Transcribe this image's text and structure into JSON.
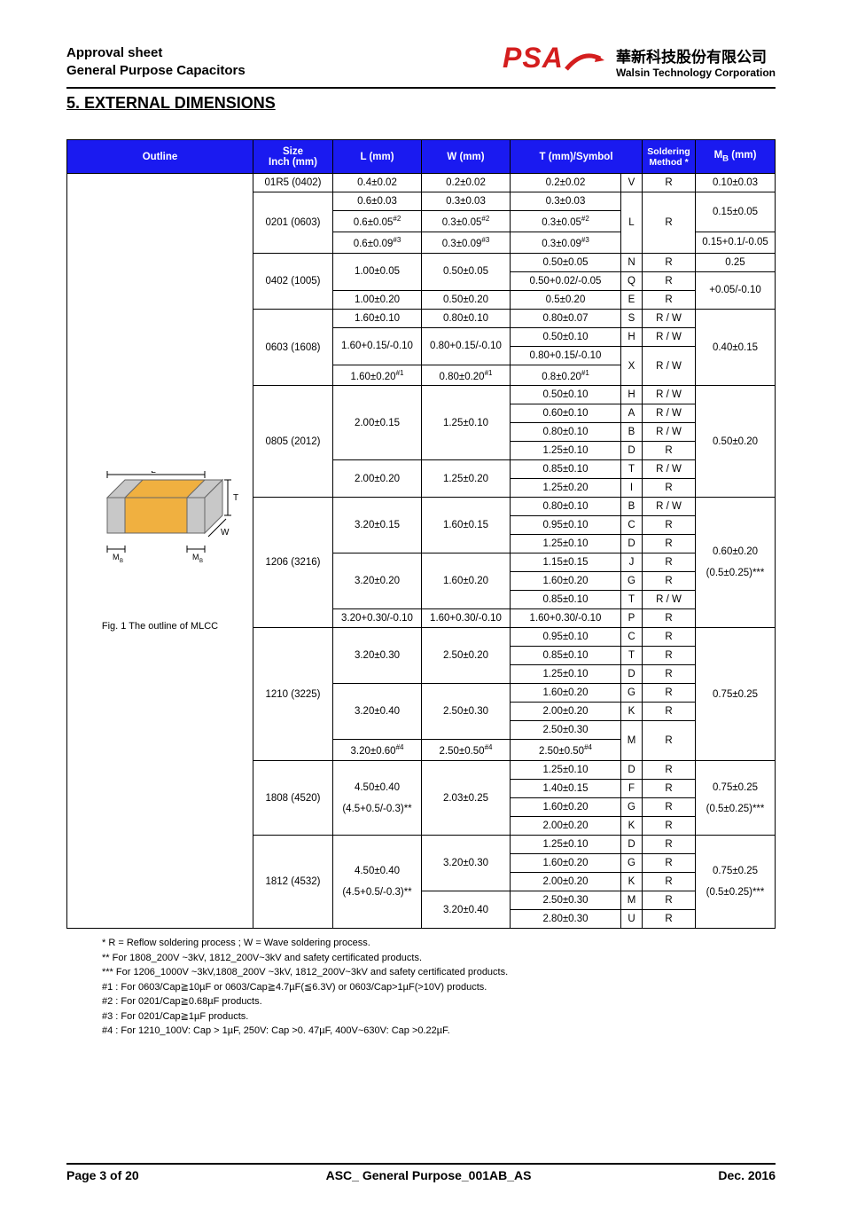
{
  "header": {
    "line1": "Approval sheet",
    "line2": "General Purpose Capacitors",
    "logo_text": "PSA",
    "company_cn": "華新科技股份有限公司",
    "company_en": "Walsin Technology Corporation"
  },
  "section_title": "5. EXTERNAL DIMENSIONS",
  "table": {
    "headers": {
      "outline": "Outline",
      "size": "Size\nInch (mm)",
      "l": "L (mm)",
      "w": "W (mm)",
      "t": "T (mm)/Symbol",
      "sold": "Soldering\nMethod *",
      "mb": "M_B (mm)"
    },
    "fig_labels": {
      "L": "L",
      "T": "T",
      "W": "W",
      "MB1": "M_B",
      "MB2": "M_B"
    },
    "fig_caption": "Fig. 1 The outline of MLCC",
    "colors": {
      "header_bg": "#1a1af0",
      "header_fg": "#ffffff",
      "mlcc_body": "#f0b040",
      "mlcc_term": "#c8c8c8",
      "mlcc_edge": "#666666"
    }
  },
  "rows": [
    {
      "size": "01R5 (0402)",
      "sub": [
        {
          "l": "0.4±0.02",
          "w": "0.2±0.02",
          "t": "0.2±0.02",
          "sym": "V",
          "sold": "R",
          "mb": "0.10±0.03"
        }
      ]
    },
    {
      "size": "0201 (0603)",
      "sub": [
        {
          "l": "0.6±0.03",
          "w": "0.3±0.03",
          "t": "0.3±0.03",
          "sym_rs": 3,
          "sym": "L",
          "sold_rs": 3,
          "sold": "R",
          "mb_rs": 2,
          "mb": "0.15±0.05"
        },
        {
          "l": "0.6±0.05#2",
          "w": "0.3±0.05#2",
          "t": "0.3±0.05#2"
        },
        {
          "l": "0.6±0.09#3",
          "w": "0.3±0.09#3",
          "t": "0.3±0.09#3",
          "mb": "0.15+0.1/-0.05"
        }
      ]
    },
    {
      "size": "0402 (1005)",
      "sub": [
        {
          "l": "1.00±0.05",
          "l_rs": 2,
          "w": "0.50±0.05",
          "w_rs": 2,
          "t": "0.50±0.05",
          "sym": "N",
          "sold": "R",
          "mb": "0.25"
        },
        {
          "t": "0.50+0.02/-0.05",
          "sym": "Q",
          "sold": "R",
          "mb_rs": 2,
          "mb": "+0.05/-0.10"
        },
        {
          "l": "1.00±0.20",
          "w": "0.50±0.20",
          "t": "0.5±0.20",
          "sym": "E",
          "sold": "R"
        }
      ]
    },
    {
      "size": "0603 (1608)",
      "sub": [
        {
          "l": "1.60±0.10",
          "w": "0.80±0.10",
          "t": "0.80±0.07",
          "sym": "S",
          "sold": "R / W",
          "mb_rs": 4,
          "mb": "0.40±0.15"
        },
        {
          "l": "1.60+0.15/-0.10",
          "l_rs": 2,
          "w": "0.80+0.15/-0.10",
          "w_rs": 2,
          "t": "0.50±0.10",
          "sym": "H",
          "sold": "R / W"
        },
        {
          "t": "0.80+0.15/-0.10",
          "sym_rs": 2,
          "sym": "X",
          "sold_rs": 2,
          "sold": "R / W"
        },
        {
          "l": "1.60±0.20#1",
          "w": "0.80±0.20#1",
          "t": "0.8±0.20#1"
        }
      ]
    },
    {
      "size": "0805 (2012)",
      "sub": [
        {
          "l": "2.00±0.15",
          "l_rs": 4,
          "w": "1.25±0.10",
          "w_rs": 4,
          "t": "0.50±0.10",
          "sym": "H",
          "sold": "R / W",
          "mb_rs": 6,
          "mb": "0.50±0.20"
        },
        {
          "t": "0.60±0.10",
          "sym": "A",
          "sold": "R / W"
        },
        {
          "t": "0.80±0.10",
          "sym": "B",
          "sold": "R / W"
        },
        {
          "t": "1.25±0.10",
          "sym": "D",
          "sold": "R"
        },
        {
          "l": "2.00±0.20",
          "l_rs": 2,
          "w": "1.25±0.20",
          "w_rs": 2,
          "t": "0.85±0.10",
          "sym": "T",
          "sold": "R / W"
        },
        {
          "t": "1.25±0.20",
          "sym": "I",
          "sold": "R"
        }
      ]
    },
    {
      "size": "1206 (3216)",
      "sub": [
        {
          "l": "3.20±0.15",
          "l_rs": 3,
          "w": "1.60±0.15",
          "w_rs": 3,
          "t": "0.80±0.10",
          "sym": "B",
          "sold": "R / W",
          "mb_rs": 7,
          "mb": "0.60±0.20\n\n(0.5±0.25)***"
        },
        {
          "t": "0.95±0.10",
          "sym": "C",
          "sold": "R"
        },
        {
          "t": "1.25±0.10",
          "sym": "D",
          "sold": "R"
        },
        {
          "l": "3.20±0.20",
          "l_rs": 3,
          "w": "1.60±0.20",
          "w_rs": 3,
          "t": "1.15±0.15",
          "sym": "J",
          "sold": "R"
        },
        {
          "t": "1.60±0.20",
          "sym": "G",
          "sold": "R"
        },
        {
          "t": "0.85±0.10",
          "sym": "T",
          "sold": "R / W"
        },
        {
          "l": "3.20+0.30/-0.10",
          "w": "1.60+0.30/-0.10",
          "t": "1.60+0.30/-0.10",
          "sym": "P",
          "sold": "R"
        }
      ]
    },
    {
      "size": "1210 (3225)",
      "sub": [
        {
          "l": "3.20±0.30",
          "l_rs": 3,
          "w": "2.50±0.20",
          "w_rs": 3,
          "t": "0.95±0.10",
          "sym": "C",
          "sold": "R",
          "mb_rs": 7,
          "mb": "0.75±0.25"
        },
        {
          "t": "0.85±0.10",
          "sym": "T",
          "sold": "R"
        },
        {
          "t": "1.25±0.10",
          "sym": "D",
          "sold": "R"
        },
        {
          "l": "3.20±0.40",
          "l_rs": 3,
          "w": "2.50±0.30",
          "w_rs": 3,
          "t": "1.60±0.20",
          "sym": "G",
          "sold": "R"
        },
        {
          "t": "2.00±0.20",
          "sym": "K",
          "sold": "R"
        },
        {
          "t": "2.50±0.30",
          "sym_rs": 2,
          "sym": "M",
          "sold_rs": 2,
          "sold": "R"
        },
        {
          "l": "3.20±0.60#4",
          "w": "2.50±0.50#4",
          "t": "2.50±0.50#4"
        }
      ]
    },
    {
      "size": "1808 (4520)",
      "sub": [
        {
          "l": "4.50±0.40\n\n(4.5+0.5/-0.3)**",
          "l_rs": 4,
          "w": "2.03±0.25",
          "w_rs": 4,
          "t": "1.25±0.10",
          "sym": "D",
          "sold": "R",
          "mb_rs": 4,
          "mb": "0.75±0.25\n\n(0.5±0.25)***"
        },
        {
          "t": "1.40±0.15",
          "sym": "F",
          "sold": "R"
        },
        {
          "t": "1.60±0.20",
          "sym": "G",
          "sold": "R"
        },
        {
          "t": "2.00±0.20",
          "sym": "K",
          "sold": "R"
        }
      ]
    },
    {
      "size": "1812 (4532)",
      "sub": [
        {
          "l": "4.50±0.40\n\n(4.5+0.5/-0.3)**",
          "l_rs": 5,
          "w": "3.20±0.30",
          "w_rs": 3,
          "t": "1.25±0.10",
          "sym": "D",
          "sold": "R",
          "mb_rs": 5,
          "mb": "0.75±0.25\n\n(0.5±0.25)***"
        },
        {
          "t": "1.60±0.20",
          "sym": "G",
          "sold": "R"
        },
        {
          "t": "2.00±0.20",
          "sym": "K",
          "sold": "R"
        },
        {
          "w": "3.20±0.40",
          "w_rs": 2,
          "t": "2.50±0.30",
          "sym": "M",
          "sold": "R"
        },
        {
          "t": "2.80±0.30",
          "sym": "U",
          "sold": "R"
        }
      ]
    }
  ],
  "footnotes": [
    "* R = Reflow soldering process ; W = Wave soldering process.",
    "** For 1808_200V ~3kV, 1812_200V~3kV and safety certificated products.",
    "*** For 1206_1000V ~3kV,1808_200V ~3kV, 1812_200V~3kV and safety certificated products.",
    "#1 : For 0603/Cap≧10µF or 0603/Cap≧4.7µF(≦6.3V) or 0603/Cap>1µF(>10V) products.",
    "#2 : For 0201/Cap≧0.68µF products.",
    "#3 : For 0201/Cap≧1µF products.",
    "#4 : For 1210_100V: Cap > 1µF, 250V: Cap >0. 47µF, 400V~630V: Cap >0.22µF."
  ],
  "footer": {
    "page": "Page 3 of 20",
    "doc": "ASC_ General Purpose_001AB_AS",
    "date": "Dec. 2016"
  }
}
